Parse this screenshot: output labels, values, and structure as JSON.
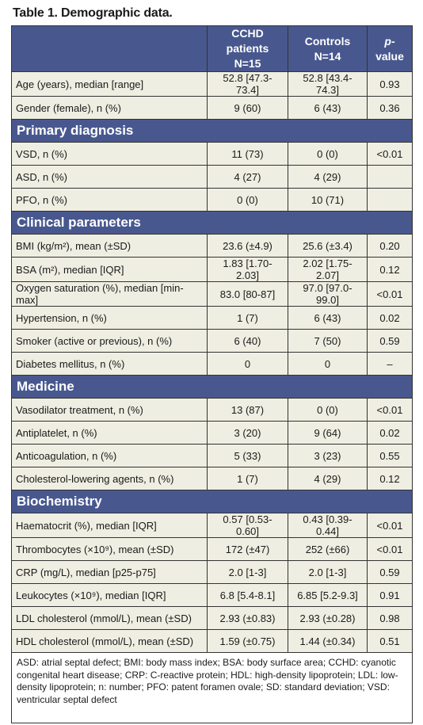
{
  "title": "Table 1. Demographic data.",
  "header": {
    "col2_line1": "CCHD patients",
    "col2_line2": "N=15",
    "col3_line1": "Controls",
    "col3_line2": "N=14",
    "col4_p": "p",
    "col4_rest": "-value"
  },
  "groups": [
    {
      "heading": "",
      "rows": [
        {
          "label": "Age (years), median [range]",
          "cchd": "52.8 [47.3-73.4]",
          "controls": "52.8 [43.4-74.3]",
          "p": "0.93"
        },
        {
          "label": "Gender (female), n (%)",
          "cchd": "9 (60)",
          "controls": "6 (43)",
          "p": "0.36"
        }
      ]
    },
    {
      "heading": "Primary diagnosis",
      "rows": [
        {
          "label": "VSD, n (%)",
          "cchd": "11 (73)",
          "controls": "0 (0)",
          "p": "<0.01"
        },
        {
          "label": "ASD, n (%)",
          "cchd": "4 (27)",
          "controls": "4 (29)",
          "p": ""
        },
        {
          "label": "PFO, n (%)",
          "cchd": "0 (0)",
          "controls": "10 (71)",
          "p": ""
        }
      ]
    },
    {
      "heading": "Clinical parameters",
      "rows": [
        {
          "label": "BMI (kg/m²), mean (±SD)",
          "cchd": "23.6 (±4.9)",
          "controls": "25.6 (±3.4)",
          "p": "0.20"
        },
        {
          "label": "BSA (m²), median [IQR]",
          "cchd": "1.83 [1.70-2.03]",
          "controls": "2.02 [1.75-2.07]",
          "p": "0.12"
        },
        {
          "label": "Oxygen saturation (%), median [min-max]",
          "cchd": "83.0 [80-87]",
          "controls": "97.0 [97.0-99.0]",
          "p": "<0.01"
        },
        {
          "label": "Hypertension, n (%)",
          "cchd": "1 (7)",
          "controls": "6 (43)",
          "p": "0.02"
        },
        {
          "label": "Smoker (active or previous), n (%)",
          "cchd": "6 (40)",
          "controls": "7 (50)",
          "p": "0.59"
        },
        {
          "label": "Diabetes mellitus, n (%)",
          "cchd": "0",
          "controls": "0",
          "p": "–"
        }
      ]
    },
    {
      "heading": "Medicine",
      "rows": [
        {
          "label": "Vasodilator treatment, n (%)",
          "cchd": "13 (87)",
          "controls": "0 (0)",
          "p": "<0.01"
        },
        {
          "label": "Antiplatelet, n (%)",
          "cchd": "3 (20)",
          "controls": "9 (64)",
          "p": "0.02"
        },
        {
          "label": "Anticoagulation, n (%)",
          "cchd": "5 (33)",
          "controls": "3 (23)",
          "p": "0.55"
        },
        {
          "label": "Cholesterol-lowering agents, n (%)",
          "cchd": "1 (7)",
          "controls": "4 (29)",
          "p": "0.12"
        }
      ]
    },
    {
      "heading": "Biochemistry",
      "rows": [
        {
          "label": "Haematocrit (%), median [IQR]",
          "cchd": "0.57 [0.53-0.60]",
          "controls": "0.43 [0.39-0.44]",
          "p": "<0.01"
        },
        {
          "label": "Thrombocytes (×10⁹), mean (±SD)",
          "cchd": "172 (±47)",
          "controls": "252 (±66)",
          "p": "<0.01"
        },
        {
          "label": "CRP (mg/L), median [p25-p75]",
          "cchd": "2.0 [1-3]",
          "controls": "2.0 [1-3]",
          "p": "0.59"
        },
        {
          "label": "Leukocytes (×10⁹), median [IQR]",
          "cchd": "6.8 [5.4-8.1]",
          "controls": "6.85 [5.2-9.3]",
          "p": "0.91"
        },
        {
          "label": "LDL cholesterol (mmol/L), mean (±SD)",
          "cchd": "2.93 (±0.83)",
          "controls": "2.93 (±0.28)",
          "p": "0.98"
        },
        {
          "label": "HDL cholesterol (mmol/L), mean (±SD)",
          "cchd": "1.59 (±0.75)",
          "controls": "1.44 (±0.34)",
          "p": "0.51"
        }
      ]
    }
  ],
  "footnote": "ASD: atrial septal defect; BMI: body mass index; BSA: body surface area; CCHD: cyanotic congenital heart disease; CRP: C-reactive protein; HDL: high-density lipoprotein; LDL: low-density lipoprotein; n: number; PFO: patent foramen ovale; SD: standard deviation; VSD: ventricular septal defect",
  "colors": {
    "header_bg": "#48588f",
    "row_bg": "#efeee2",
    "border": "#333333"
  }
}
